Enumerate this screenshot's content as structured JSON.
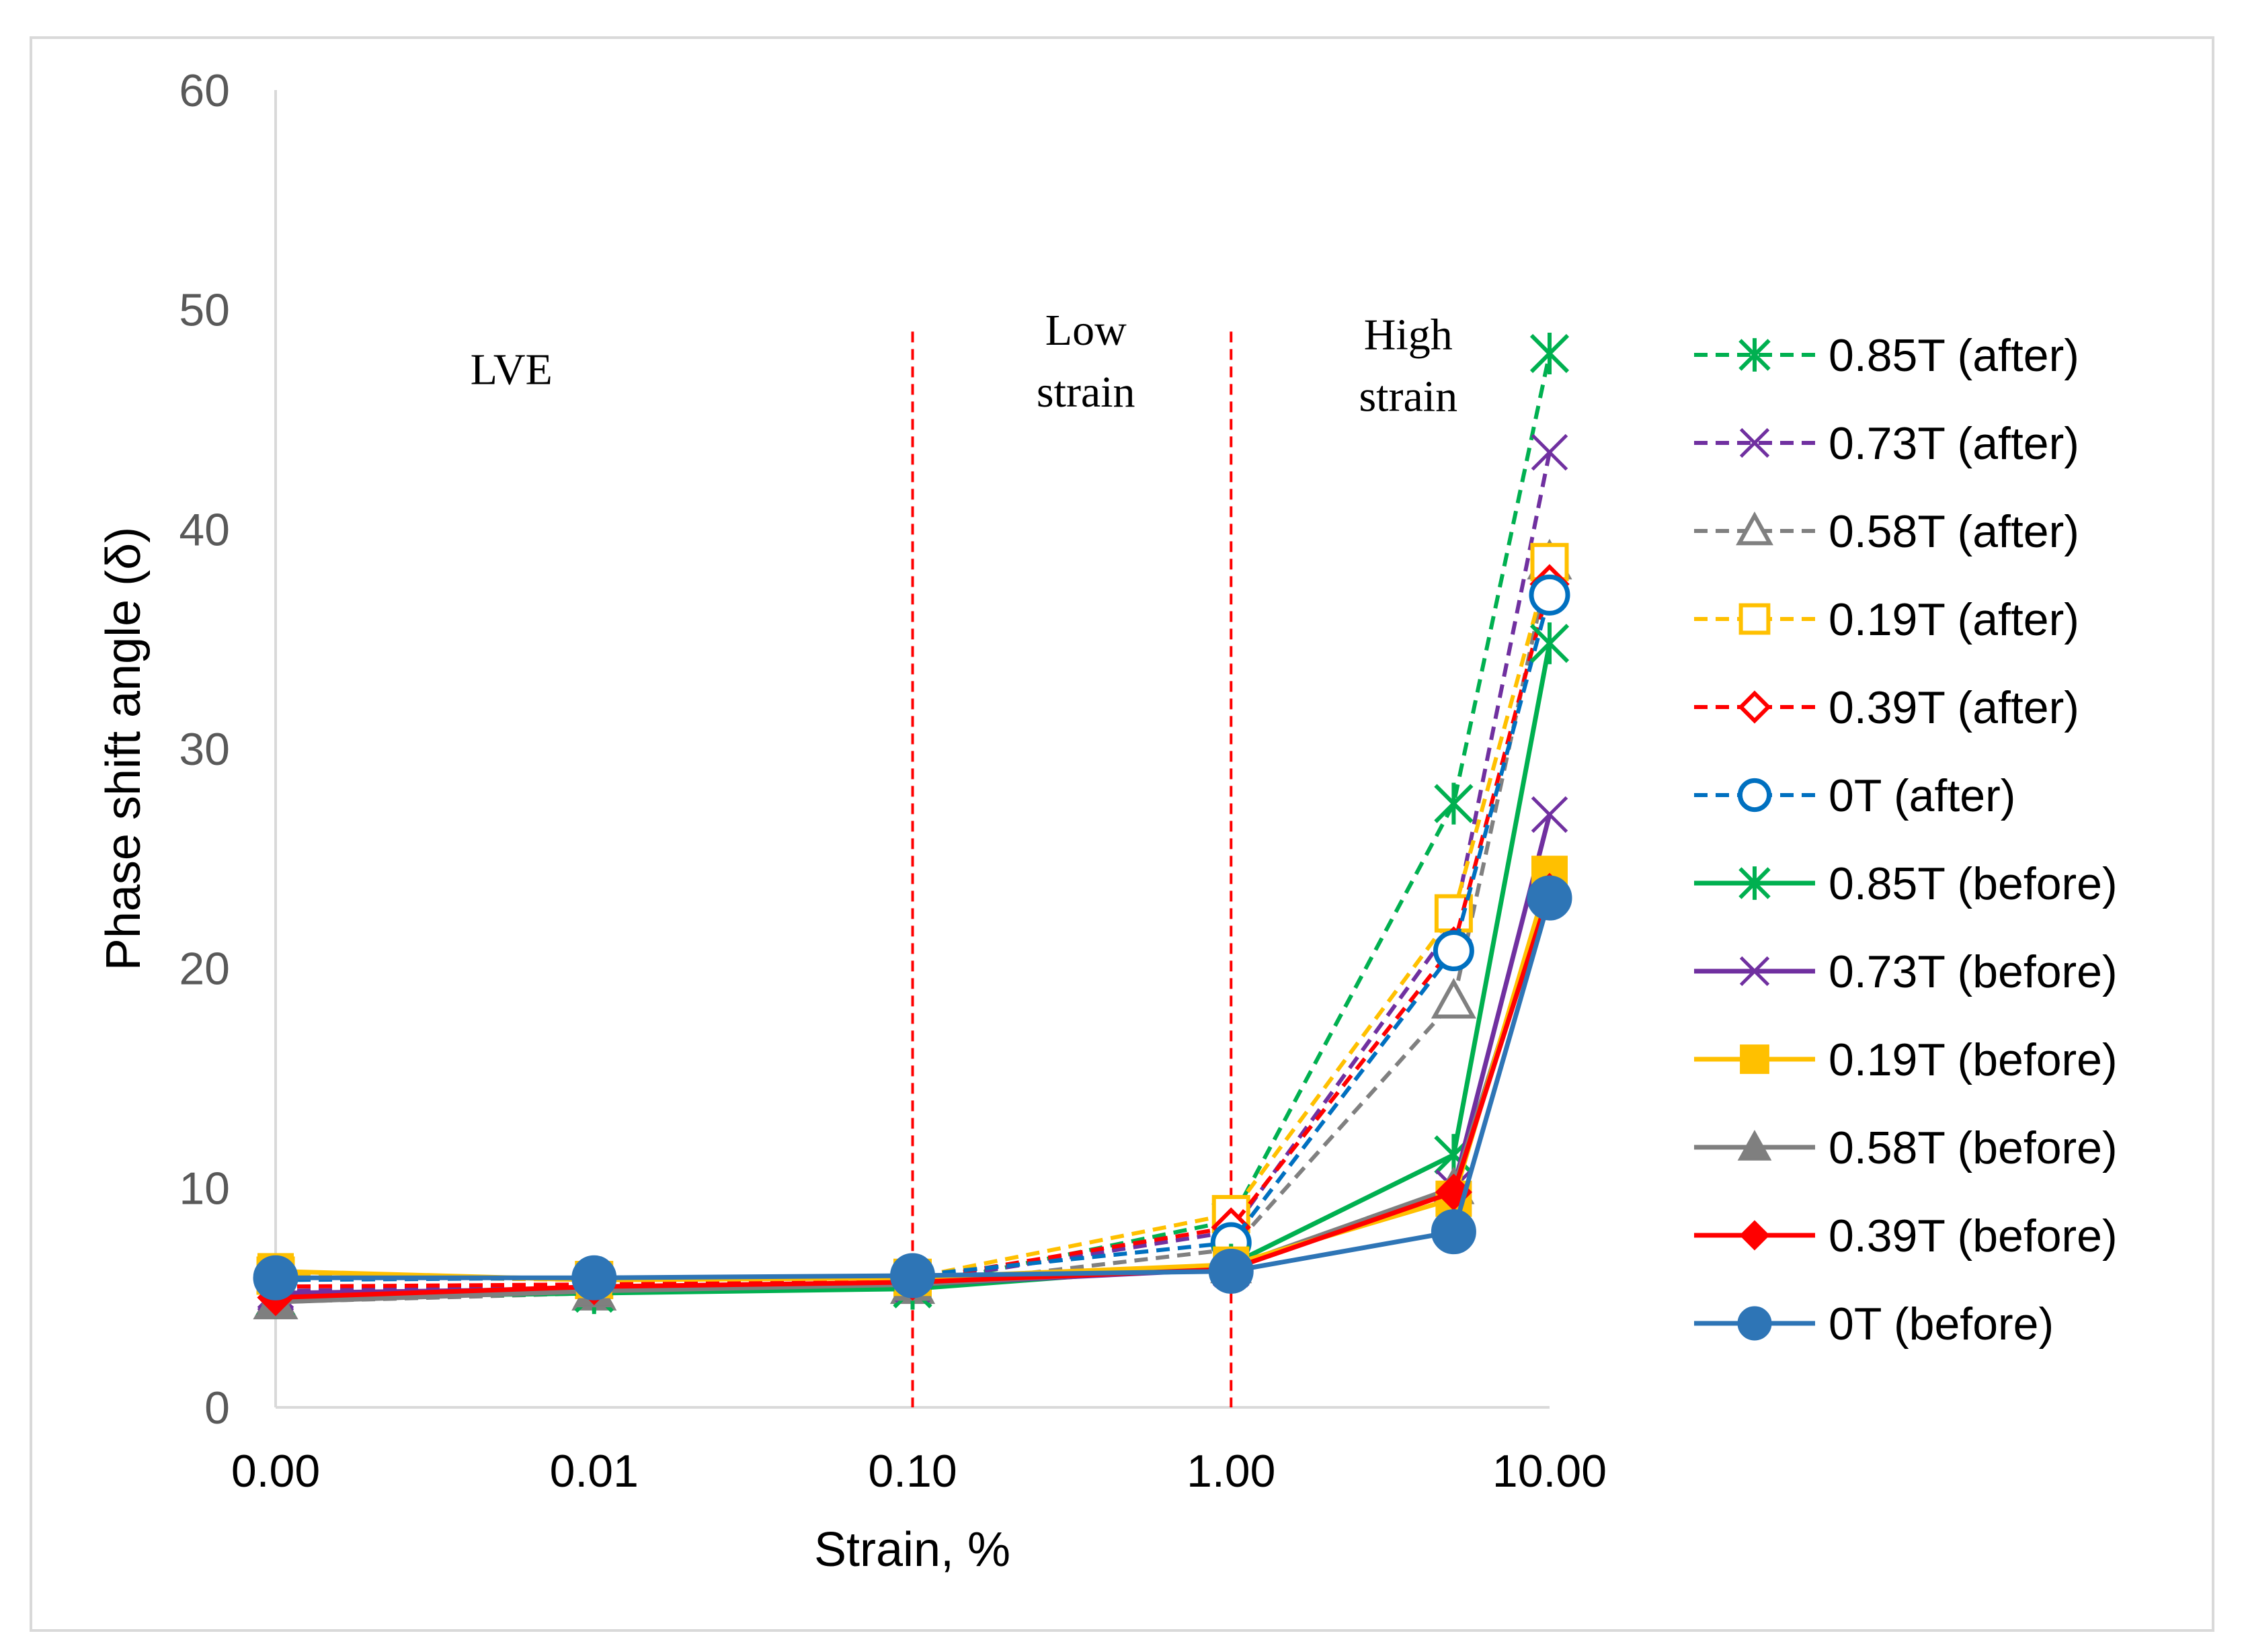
{
  "chart_data": {
    "type": "line",
    "xlabel": "Strain, %",
    "ylabel": "Phase shift angle (δ)",
    "ylim": [
      0,
      60
    ],
    "yticks": [
      "0",
      "10",
      "20",
      "30",
      "40",
      "50",
      "60"
    ],
    "x_scale": "log",
    "xticks": [
      {
        "value": 0.001,
        "label": "0.00"
      },
      {
        "value": 0.01,
        "label": "0.01"
      },
      {
        "value": 0.1,
        "label": "0.10"
      },
      {
        "value": 1,
        "label": "1.00"
      },
      {
        "value": 10,
        "label": "10.00"
      }
    ],
    "x": [
      0.001,
      0.01,
      0.1,
      1,
      5,
      10
    ],
    "regions": [
      {
        "lines": [
          "LVE"
        ],
        "x_pos": 0.0055,
        "y_pos": 46.6
      },
      {
        "lines": [
          "Low",
          "strain"
        ],
        "x_pos": 0.35,
        "y_pos": 48.4
      },
      {
        "lines": [
          "High",
          "strain"
        ],
        "x_pos": 3.6,
        "y_pos": 48.2
      }
    ],
    "region_boundaries": [
      0.1,
      1
    ],
    "boundary_color": "#ff0000",
    "series": [
      {
        "name": "0.85T (after)",
        "color": "#00b050",
        "dash": true,
        "marker": "star",
        "values": [
          5.0,
          5.3,
          5.5,
          8.5,
          27.5,
          48.0
        ]
      },
      {
        "name": "0.73T (after)",
        "color": "#7030a0",
        "dash": true,
        "marker": "x",
        "values": [
          5.3,
          5.5,
          5.7,
          8.0,
          22.0,
          43.5
        ]
      },
      {
        "name": "0.58T (after)",
        "color": "#808080",
        "dash": true,
        "marker": "triangle-open",
        "values": [
          4.8,
          5.2,
          5.5,
          7.2,
          18.5,
          38.5
        ]
      },
      {
        "name": "0.19T (after)",
        "color": "#ffc000",
        "dash": true,
        "marker": "square-open",
        "values": [
          6.0,
          5.8,
          5.9,
          8.8,
          22.5,
          38.5
        ]
      },
      {
        "name": "0.39T (after)",
        "color": "#ff0000",
        "dash": true,
        "marker": "diamond-open",
        "values": [
          5.5,
          5.6,
          5.8,
          8.2,
          21.0,
          37.5
        ]
      },
      {
        "name": "0T (after)",
        "color": "#0070c0",
        "dash": true,
        "marker": "circle-open",
        "values": [
          5.8,
          5.9,
          6.0,
          7.5,
          20.8,
          37.0
        ]
      },
      {
        "name": "0.85T (before)",
        "color": "#00b050",
        "dash": false,
        "marker": "star",
        "values": [
          5.0,
          5.2,
          5.4,
          6.5,
          11.5,
          34.8
        ]
      },
      {
        "name": "0.73T (before)",
        "color": "#7030a0",
        "dash": false,
        "marker": "x",
        "values": [
          5.2,
          5.4,
          5.6,
          6.3,
          10.0,
          27.0
        ]
      },
      {
        "name": "0.19T (before)",
        "color": "#ffc000",
        "dash": false,
        "marker": "square",
        "values": [
          6.2,
          5.8,
          5.9,
          6.5,
          9.5,
          24.3
        ]
      },
      {
        "name": "0.58T (before)",
        "color": "#7f7f7f",
        "dash": false,
        "marker": "triangle",
        "values": [
          4.8,
          5.3,
          5.6,
          6.4,
          10.0,
          23.8
        ]
      },
      {
        "name": "0.39T (before)",
        "color": "#ff0000",
        "dash": false,
        "marker": "diamond",
        "values": [
          5.0,
          5.5,
          5.7,
          6.3,
          9.8,
          23.5
        ]
      },
      {
        "name": "0T (before)",
        "color": "#2e75b6",
        "dash": false,
        "marker": "circle",
        "values": [
          5.9,
          5.9,
          6.0,
          6.2,
          8.0,
          23.2
        ]
      }
    ]
  }
}
